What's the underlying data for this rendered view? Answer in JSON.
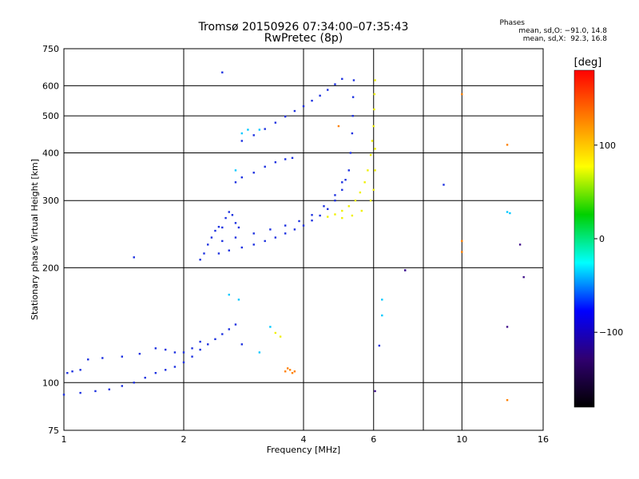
{
  "chart_data": {
    "type": "scatter",
    "title": "Tromsø 20150926 07:34:00–07:35:43",
    "subtitle": "RwPretec (8p)",
    "xlabel": "Frequency [MHz]",
    "ylabel": "Stationary phase Virtual Height [km]",
    "x_scale": "log",
    "y_scale": "log",
    "xlim": [
      1,
      16
    ],
    "ylim": [
      75,
      750
    ],
    "x_ticks": [
      "1",
      "2",
      "4",
      "6",
      "10",
      "16"
    ],
    "y_ticks": [
      "75",
      "100",
      "200",
      "300",
      "400",
      "500",
      "600",
      "750"
    ],
    "x_gridlines": [
      1,
      2,
      4,
      6,
      8,
      10,
      16
    ],
    "y_gridlines": [
      75,
      100,
      200,
      300,
      400,
      500,
      600,
      750
    ],
    "grid": true,
    "stats": {
      "title": "Phases",
      "line_o": "mean, sd,O: −91.0, 14.8",
      "line_x": "mean, sd,X:  92.3, 16.8"
    },
    "colorbar": {
      "label": "[deg]",
      "range": [
        -180,
        180
      ],
      "ticks": [
        "100",
        "0",
        "−100"
      ],
      "tick_values": [
        100,
        0,
        -100
      ],
      "colors": [
        "#ff0000",
        "#ff8000",
        "#ffff00",
        "#00d000",
        "#00ffff",
        "#0000ff",
        "#300070",
        "#000000"
      ]
    },
    "series": [
      {
        "phase_deg": -105,
        "color": "#1c30e0",
        "points": [
          [
            1.0,
            93
          ],
          [
            1.1,
            94
          ],
          [
            1.2,
            95
          ],
          [
            1.3,
            96
          ],
          [
            1.4,
            98
          ],
          [
            1.5,
            100
          ],
          [
            1.6,
            103
          ],
          [
            1.7,
            106
          ],
          [
            1.8,
            108
          ],
          [
            1.9,
            110
          ],
          [
            2.0,
            113
          ],
          [
            2.1,
            117
          ],
          [
            2.2,
            122
          ],
          [
            2.3,
            126
          ],
          [
            2.4,
            130
          ],
          [
            2.5,
            134
          ],
          [
            2.6,
            138
          ],
          [
            2.7,
            142
          ],
          [
            2.8,
            126
          ],
          [
            1.15,
            115
          ],
          [
            1.25,
            116
          ],
          [
            1.4,
            117
          ],
          [
            1.55,
            119
          ],
          [
            1.7,
            123
          ],
          [
            1.8,
            122
          ],
          [
            1.9,
            120
          ],
          [
            2.0,
            120
          ],
          [
            2.1,
            123
          ],
          [
            2.2,
            128
          ],
          [
            1.02,
            106
          ],
          [
            1.05,
            107
          ],
          [
            1.1,
            108
          ],
          [
            2.45,
            218
          ],
          [
            2.6,
            222
          ],
          [
            2.8,
            226
          ],
          [
            3.0,
            230
          ],
          [
            3.2,
            235
          ],
          [
            3.4,
            240
          ],
          [
            3.6,
            246
          ],
          [
            3.8,
            252
          ],
          [
            4.0,
            258
          ],
          [
            4.2,
            266
          ],
          [
            4.4,
            274
          ],
          [
            4.6,
            285
          ],
          [
            4.8,
            300
          ],
          [
            5.0,
            320
          ],
          [
            5.1,
            340
          ],
          [
            5.2,
            360
          ],
          [
            5.25,
            400
          ],
          [
            5.3,
            450
          ],
          [
            5.32,
            500
          ],
          [
            5.33,
            560
          ],
          [
            5.35,
            620
          ],
          [
            2.5,
            235
          ],
          [
            2.7,
            240
          ],
          [
            3.0,
            246
          ],
          [
            3.3,
            252
          ],
          [
            3.6,
            258
          ],
          [
            3.9,
            265
          ],
          [
            4.2,
            275
          ],
          [
            4.5,
            290
          ],
          [
            4.8,
            310
          ],
          [
            5.0,
            335
          ],
          [
            2.2,
            210
          ],
          [
            2.25,
            218
          ],
          [
            2.3,
            230
          ],
          [
            2.35,
            240
          ],
          [
            2.4,
            250
          ],
          [
            2.45,
            256
          ],
          [
            2.5,
            255
          ],
          [
            2.55,
            270
          ],
          [
            2.6,
            280
          ],
          [
            2.65,
            275
          ],
          [
            2.7,
            262
          ],
          [
            2.75,
            255
          ],
          [
            2.8,
            430
          ],
          [
            3.0,
            445
          ],
          [
            3.2,
            462
          ],
          [
            3.4,
            480
          ],
          [
            3.6,
            498
          ],
          [
            3.8,
            515
          ],
          [
            4.0,
            530
          ],
          [
            4.2,
            548
          ],
          [
            4.4,
            565
          ],
          [
            4.6,
            585
          ],
          [
            4.8,
            605
          ],
          [
            5.0,
            625
          ],
          [
            2.7,
            335
          ],
          [
            2.8,
            345
          ],
          [
            3.0,
            355
          ],
          [
            3.2,
            368
          ],
          [
            3.4,
            378
          ],
          [
            3.6,
            385
          ],
          [
            3.75,
            388
          ],
          [
            1.5,
            213
          ],
          [
            2.5,
            650
          ],
          [
            6.2,
            125
          ],
          [
            7.2,
            197
          ],
          [
            9.0,
            330
          ]
        ]
      },
      {
        "phase_deg": 100,
        "color": "#f0f000",
        "points": [
          [
            4.6,
            272
          ],
          [
            4.8,
            276
          ],
          [
            5.0,
            282
          ],
          [
            5.2,
            290
          ],
          [
            5.4,
            300
          ],
          [
            5.55,
            315
          ],
          [
            5.7,
            335
          ],
          [
            5.8,
            360
          ],
          [
            5.9,
            395
          ],
          [
            5.95,
            430
          ],
          [
            6.0,
            470
          ],
          [
            6.02,
            520
          ],
          [
            6.03,
            570
          ],
          [
            6.05,
            620
          ],
          [
            5.0,
            270
          ],
          [
            5.3,
            274
          ],
          [
            5.6,
            282
          ],
          [
            5.9,
            300
          ],
          [
            6.0,
            320
          ],
          [
            6.05,
            360
          ],
          [
            6.05,
            410
          ],
          [
            3.4,
            135
          ],
          [
            3.5,
            132
          ]
        ]
      },
      {
        "phase_deg": 140,
        "color": "#ff8000",
        "points": [
          [
            3.6,
            107
          ],
          [
            3.7,
            108
          ],
          [
            3.8,
            107
          ],
          [
            3.65,
            109
          ],
          [
            3.75,
            106
          ],
          [
            4.9,
            470
          ],
          [
            10.0,
            570
          ],
          [
            13.0,
            420
          ],
          [
            13.0,
            90
          ],
          [
            10.0,
            235
          ],
          [
            10.0,
            220
          ]
        ]
      },
      {
        "phase_deg": 5,
        "color": "#00c8ff",
        "points": [
          [
            2.8,
            450
          ],
          [
            2.9,
            460
          ],
          [
            3.1,
            460
          ],
          [
            2.7,
            360
          ],
          [
            2.6,
            170
          ],
          [
            2.75,
            165
          ],
          [
            3.3,
            140
          ],
          [
            3.1,
            120
          ],
          [
            6.3,
            165
          ],
          [
            6.3,
            150
          ],
          [
            13.0,
            280
          ],
          [
            13.2,
            278
          ]
        ]
      },
      {
        "phase_deg": -160,
        "color": "#40108a",
        "points": [
          [
            13.0,
            140
          ],
          [
            14.0,
            230
          ],
          [
            14.3,
            189
          ],
          [
            6.05,
            95
          ],
          [
            7.2,
            197
          ]
        ]
      }
    ]
  }
}
